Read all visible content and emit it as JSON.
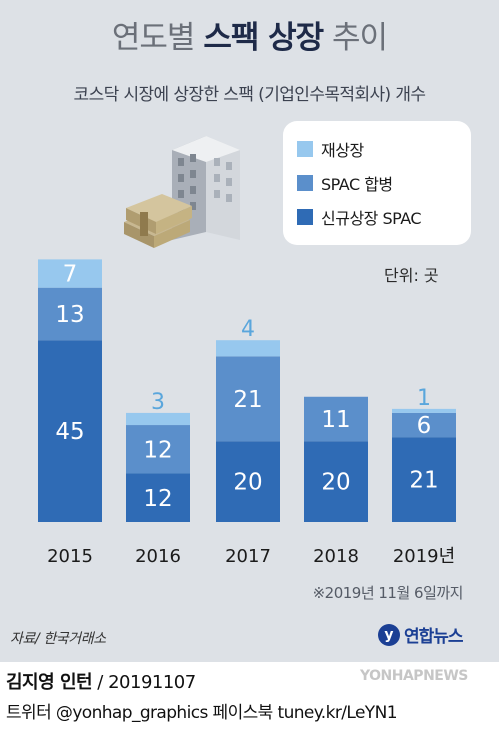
{
  "title_normal_1": "연도별 ",
  "title_bold": "스팩 상장",
  "title_normal_2": " 추이",
  "subtitle": "코스닥 시장에 상장한 스팩 (기업인수목적회사) 개수",
  "unit": "단위: 곳",
  "note": "※2019년 11월 6일까지",
  "source": "자료/ 한국거래소",
  "logo": {
    "mark": "y",
    "text": "연합뉴스"
  },
  "credit": {
    "name": "김지영 인턴",
    "rest": " / 20191107"
  },
  "social": "트위터 @yonhap_graphics  페이스북 tuney.kr/LeYN1",
  "watermark": "YONHAPNEWS",
  "colors": {
    "new_listing": "#2f6bb5",
    "merger": "#5b8fcb",
    "relisting": "#97c8ee"
  },
  "chart_data": {
    "type": "bar",
    "stacked": true,
    "categories": [
      "2015",
      "2016",
      "2017",
      "2018",
      "2019년"
    ],
    "series": [
      {
        "name": "신규상장 SPAC",
        "values": [
          45,
          12,
          20,
          20,
          21
        ]
      },
      {
        "name": "SPAC 합병",
        "values": [
          13,
          12,
          21,
          11,
          6
        ]
      },
      {
        "name": "재상장",
        "values": [
          7,
          3,
          4,
          0,
          1
        ]
      }
    ],
    "legend_order": [
      "재상장",
      "SPAC 합병",
      "신규상장 SPAC"
    ],
    "legend_position": "top-right"
  }
}
